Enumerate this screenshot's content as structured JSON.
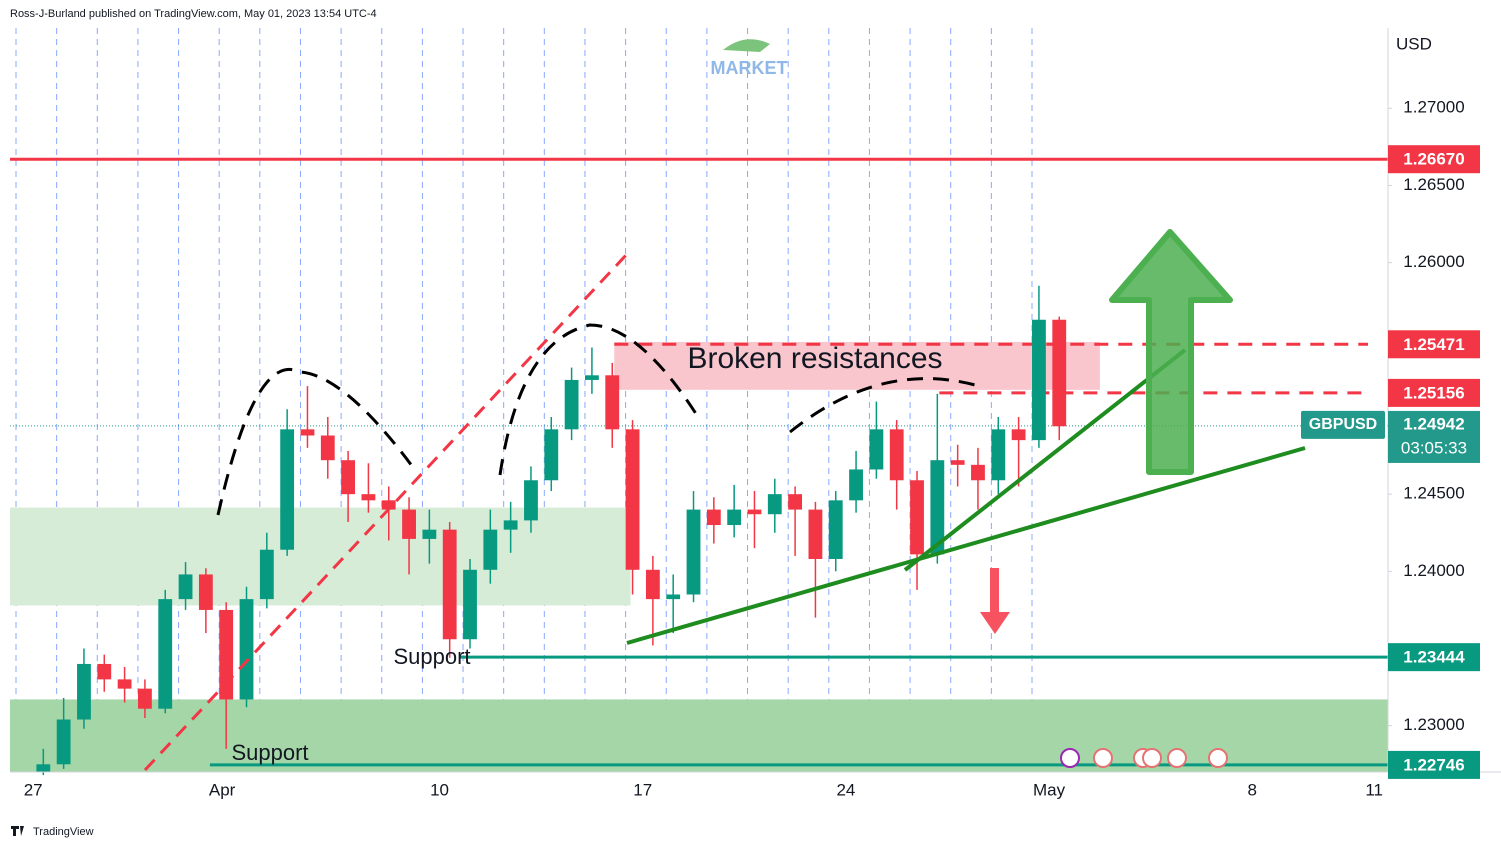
{
  "header": "Ross-J-Burland published on TradingView.com, May 01, 2023 13:54 UTC-4",
  "footer": "TradingView",
  "logo": "MARKET",
  "chart_data": {
    "type": "candlestick",
    "currency": "USD",
    "up_color": "#089981",
    "down_color": "#f23645",
    "xlim": [
      -0.57,
      33.34
    ],
    "ylim": [
      1.227,
      1.2752
    ],
    "xticks": [
      {
        "value": 0,
        "label": "27"
      },
      {
        "value": 4.65,
        "label": "Apr"
      },
      {
        "value": 10,
        "label": "10"
      },
      {
        "value": 15,
        "label": "17"
      },
      {
        "value": 20,
        "label": "24"
      },
      {
        "value": 25,
        "label": "May"
      },
      {
        "value": 30,
        "label": "8"
      },
      {
        "value": 33,
        "label": "11"
      }
    ],
    "yticks": [
      {
        "value": 1.23,
        "label": "1.23000"
      },
      {
        "value": 1.24,
        "label": "1.24000"
      },
      {
        "value": 1.245,
        "label": "1.24500"
      },
      {
        "value": 1.26,
        "label": "1.26000"
      },
      {
        "value": 1.265,
        "label": "1.26500"
      },
      {
        "value": 1.27,
        "label": "1.27000"
      }
    ],
    "x": [
      0.25,
      0.75,
      1.25,
      1.75,
      2.25,
      2.75,
      3.25,
      3.75,
      4.25,
      4.75,
      5.25,
      5.75,
      6.25,
      6.75,
      7.25,
      7.75,
      8.25,
      8.75,
      9.25,
      9.75,
      10.25,
      10.75,
      11.25,
      11.75,
      12.25,
      12.75,
      13.25,
      13.75,
      14.25,
      14.75,
      15.25,
      15.75,
      16.25,
      16.75,
      17.25,
      17.75,
      18.25,
      18.75,
      19.25,
      19.75,
      20.25,
      20.75,
      21.25,
      21.75,
      22.25,
      22.75,
      23.25,
      23.75,
      24.25,
      24.75,
      25.25
    ],
    "open": [
      1.227,
      1.2275,
      1.2304,
      1.234,
      1.233,
      1.2324,
      1.2311,
      1.2382,
      1.2398,
      1.2375,
      1.2317,
      1.2382,
      1.2414,
      1.2492,
      1.2488,
      1.2472,
      1.245,
      1.2446,
      1.244,
      1.2421,
      1.2427,
      1.2356,
      1.2401,
      1.2427,
      1.2433,
      1.2459,
      1.2492,
      1.2524,
      1.2527,
      1.2492,
      1.2401,
      1.2382,
      1.2385,
      1.244,
      1.243,
      1.244,
      1.2437,
      1.245,
      1.244,
      1.2408,
      1.2446,
      1.2466,
      1.2492,
      1.2459,
      1.2411,
      1.2472,
      1.2469,
      1.2459,
      1.2492,
      1.2485,
      1.2563
    ],
    "high": [
      1.2285,
      1.2318,
      1.235,
      1.2346,
      1.2338,
      1.233,
      1.2388,
      1.2406,
      1.2402,
      1.238,
      1.239,
      1.2425,
      1.2505,
      1.252,
      1.25,
      1.2478,
      1.247,
      1.2455,
      1.2448,
      1.244,
      1.2432,
      1.2408,
      1.244,
      1.2445,
      1.2468,
      1.25,
      1.2532,
      1.2545,
      1.2535,
      1.2498,
      1.241,
      1.2398,
      1.2452,
      1.2448,
      1.2456,
      1.2452,
      1.246,
      1.2455,
      1.2445,
      1.2452,
      1.2478,
      1.251,
      1.2498,
      1.2465,
      1.2515,
      1.2482,
      1.248,
      1.25,
      1.25,
      1.2585,
      1.2565
    ],
    "low": [
      1.2268,
      1.2272,
      1.2298,
      1.2322,
      1.2315,
      1.2305,
      1.2308,
      1.2375,
      1.236,
      1.2285,
      1.2312,
      1.2376,
      1.241,
      1.248,
      1.246,
      1.2432,
      1.2438,
      1.242,
      1.2398,
      1.2405,
      1.2344,
      1.235,
      1.2392,
      1.2412,
      1.2425,
      1.2452,
      1.2485,
      1.2515,
      1.248,
      1.2385,
      1.2352,
      1.236,
      1.238,
      1.2418,
      1.2422,
      1.2415,
      1.2425,
      1.241,
      1.237,
      1.24,
      1.2438,
      1.246,
      1.244,
      1.2388,
      1.2405,
      1.2455,
      1.244,
      1.245,
      1.2455,
      1.248,
      1.2485
    ],
    "close": [
      1.2275,
      1.2304,
      1.234,
      1.233,
      1.2324,
      1.2311,
      1.2382,
      1.2398,
      1.2375,
      1.2317,
      1.2382,
      1.2414,
      1.2492,
      1.2488,
      1.2472,
      1.245,
      1.2446,
      1.244,
      1.2421,
      1.2427,
      1.2356,
      1.2401,
      1.2427,
      1.2433,
      1.2459,
      1.2492,
      1.2524,
      1.2527,
      1.2492,
      1.2401,
      1.2382,
      1.2385,
      1.244,
      1.243,
      1.244,
      1.2437,
      1.245,
      1.244,
      1.2408,
      1.2446,
      1.2466,
      1.2492,
      1.2459,
      1.2411,
      1.2472,
      1.2469,
      1.2459,
      1.2492,
      1.2485,
      1.2563,
      1.2494
    ],
    "zones": [
      {
        "ylim": [
          1.23779,
          1.24413
        ],
        "xlim": [
          -0.57,
          14.7
        ],
        "color": "#d6ecd6"
      },
      {
        "ylim": [
          1.227,
          1.2317
        ],
        "xlim": [
          -0.57,
          33.34
        ],
        "color": "#a5d6a7"
      },
      {
        "ylim": [
          1.25176,
          1.25486
        ],
        "xlim": [
          14.3,
          26.25
        ],
        "color": "#f8c6cc"
      }
    ],
    "levels": [
      {
        "value": 1.2667,
        "label": "1.26670",
        "color": "#f23645",
        "dash": false,
        "from": -0.57
      },
      {
        "value": 1.25471,
        "label": "1.25471",
        "color": "#f23645",
        "dash": true,
        "from": 14.3
      },
      {
        "value": 1.25156,
        "label": "1.25156",
        "color": "#f23645",
        "dash": true,
        "from": 22.3
      },
      {
        "value": 1.23444,
        "label": "1.23444",
        "color": "#089981",
        "dash": false,
        "from": 10.5
      },
      {
        "value": 1.22746,
        "label": "1.22746",
        "color": "#089981",
        "dash": false,
        "from": 4.35
      }
    ],
    "current": {
      "symbol": "GBPUSD",
      "value": 1.24942,
      "label": "1.24942",
      "countdown": "03:05:33",
      "color": "#22998a"
    },
    "annotations": {
      "resistance": "Broken resistances",
      "support_1": "Support",
      "support_2": "Support"
    }
  }
}
